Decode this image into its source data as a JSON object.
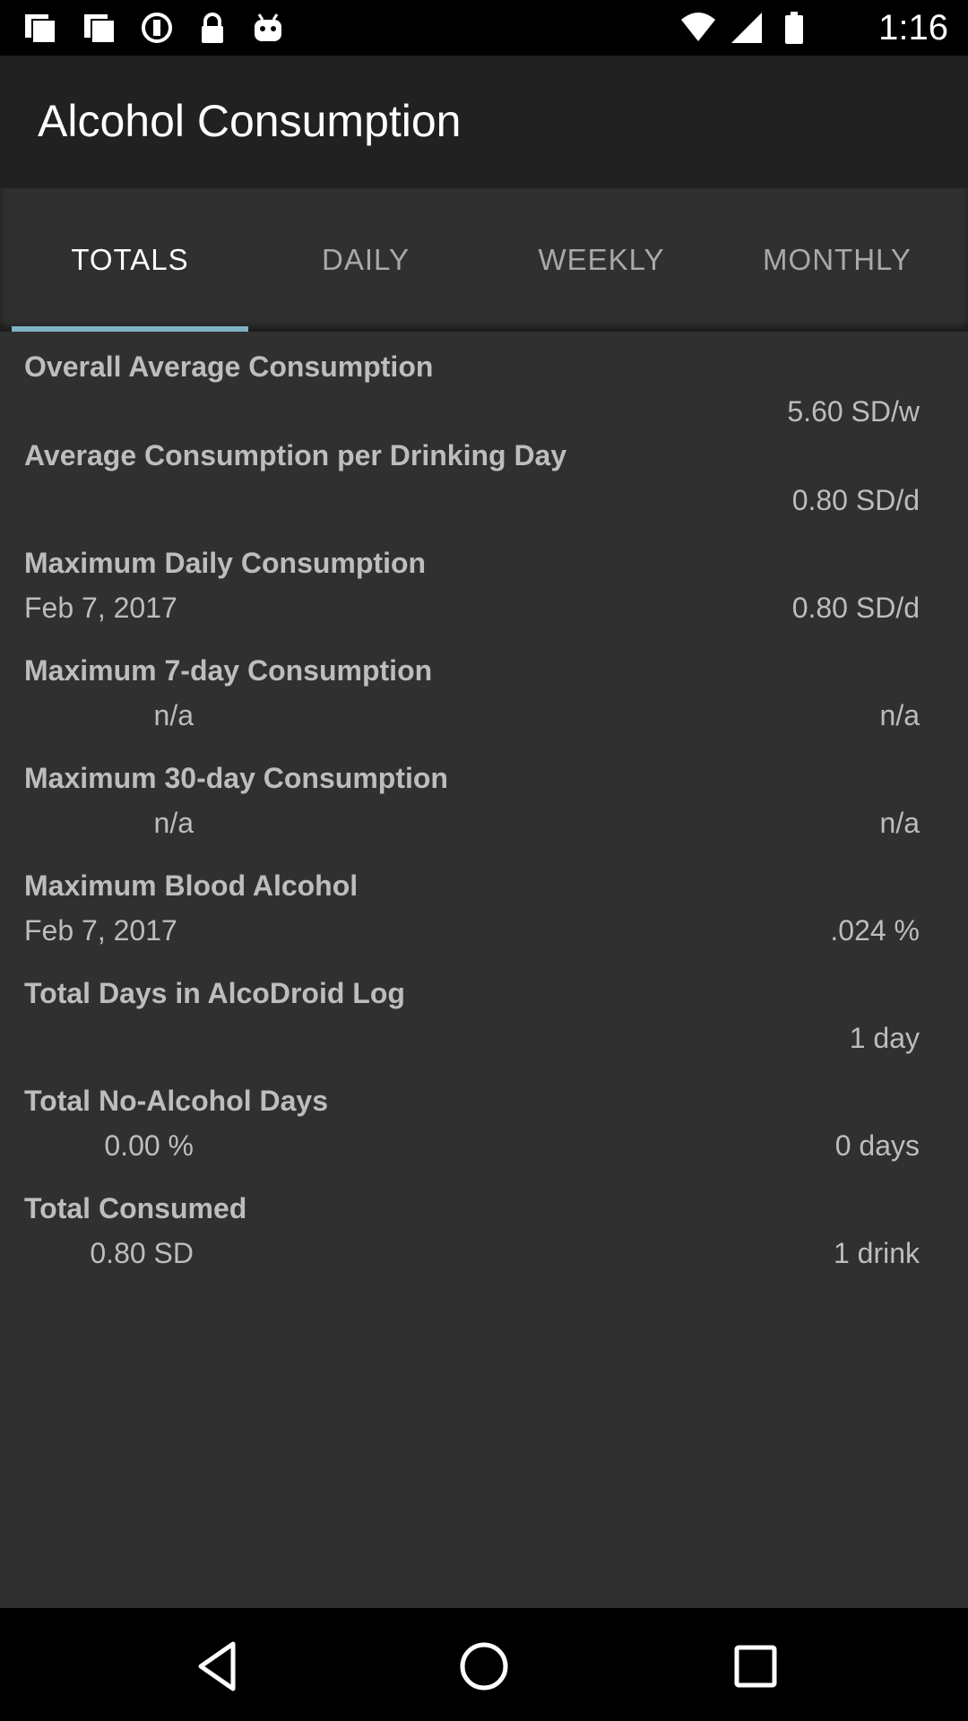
{
  "status_bar": {
    "time": "1:16",
    "left_icons": [
      "photos-icon",
      "gallery-icon",
      "sync-icon",
      "lock-icon",
      "android-icon"
    ],
    "right_icons": [
      "wifi-icon",
      "cell-signal-icon",
      "battery-icon"
    ]
  },
  "app_bar": {
    "title": "Alcohol Consumption"
  },
  "tabs": [
    {
      "label": "TOTALS",
      "active": true
    },
    {
      "label": "DAILY",
      "active": false
    },
    {
      "label": "WEEKLY",
      "active": false
    },
    {
      "label": "MONTHLY",
      "active": false
    }
  ],
  "stats": [
    {
      "heading": "Overall Average Consumption",
      "left": "",
      "right": "5.60 SD/w"
    },
    {
      "heading": "Average Consumption per Drinking Day",
      "left": "",
      "right": "0.80 SD/d"
    },
    {
      "heading": "Maximum Daily Consumption",
      "left": "Feb 7, 2017",
      "right": "0.80 SD/d"
    },
    {
      "heading": "Maximum 7-day Consumption",
      "left": "n/a",
      "right": "n/a"
    },
    {
      "heading": "Maximum 30-day Consumption",
      "left": "n/a",
      "right": "n/a"
    },
    {
      "heading": "Maximum Blood Alcohol",
      "left": "Feb 7, 2017",
      "right": ".024 %"
    },
    {
      "heading": "Total Days in AlcoDroid Log",
      "left": "",
      "right": "1 day"
    },
    {
      "heading": "Total No-Alcohol Days",
      "left": "0.00 %",
      "right": "0 days"
    },
    {
      "heading": "Total Consumed",
      "left": "0.80 SD",
      "right": "1 drink"
    }
  ],
  "nav_bar": {
    "buttons": [
      "back-icon",
      "home-icon",
      "recents-icon"
    ]
  },
  "colors": {
    "background": "#303030",
    "app_bar": "#212121",
    "tab_indicator": "#7fb3c4",
    "text": "#bdbdbd"
  }
}
